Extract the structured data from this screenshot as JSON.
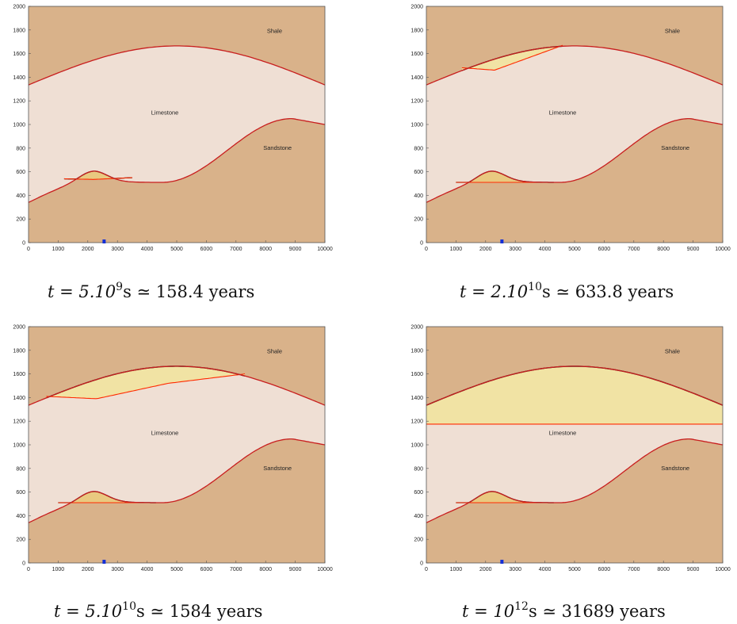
{
  "colors": {
    "rock": "#d9b28a",
    "limestone": "#efdfd4",
    "trapped_gas": "#f1e3a4",
    "boundary": "#c81e1e",
    "gas_front": "#ff2a00",
    "gas_top": "#111111",
    "marker": "#1530d8"
  },
  "axes": {
    "x_ticks": [
      "0",
      "1000",
      "2000",
      "3000",
      "4000",
      "5000",
      "6000",
      "7000",
      "8000",
      "9000",
      "10000"
    ],
    "y_ticks": [
      "0",
      "200",
      "400",
      "600",
      "800",
      "1000",
      "1200",
      "1400",
      "1600",
      "1800",
      "2000"
    ]
  },
  "labels": {
    "shale": "Shale",
    "limestone": "Limestone",
    "sandstone": "Sandstone"
  },
  "panels": [
    {
      "id": "p1",
      "caption": {
        "prefix": "t = 5.10",
        "exp": "9",
        "suffix": "s ≃ 158.4 years"
      },
      "top_gas": null,
      "bottom_gas": [
        [
          1200,
          540
        ],
        [
          2200,
          535
        ],
        [
          3500,
          550
        ]
      ]
    },
    {
      "id": "p2",
      "caption": {
        "prefix": "t = 2.10",
        "exp": "10",
        "suffix": "s ≃ 633.8 years"
      },
      "top_gas": [
        [
          1200,
          1480
        ],
        [
          2300,
          1460
        ],
        [
          4600,
          1670
        ]
      ],
      "bottom_gas": [
        [
          1000,
          510
        ],
        [
          2200,
          510
        ],
        [
          4300,
          510
        ]
      ]
    },
    {
      "id": "p3",
      "caption": {
        "prefix": "t = 5.10",
        "exp": "10",
        "suffix": "s ≃ 1584 years"
      },
      "top_gas": [
        [
          600,
          1410
        ],
        [
          2300,
          1390
        ],
        [
          4700,
          1520
        ],
        [
          7300,
          1600
        ]
      ],
      "bottom_gas": [
        [
          1000,
          510
        ],
        [
          2200,
          510
        ],
        [
          4300,
          510
        ]
      ]
    },
    {
      "id": "p4",
      "caption": {
        "prefix": "t = 10",
        "exp": "12",
        "suffix": "s ≃ 31689 years"
      },
      "top_gas": [
        [
          0,
          1175
        ],
        [
          10000,
          1175
        ]
      ],
      "bottom_gas": [
        [
          1000,
          510
        ],
        [
          2200,
          510
        ],
        [
          4300,
          510
        ]
      ]
    }
  ]
}
